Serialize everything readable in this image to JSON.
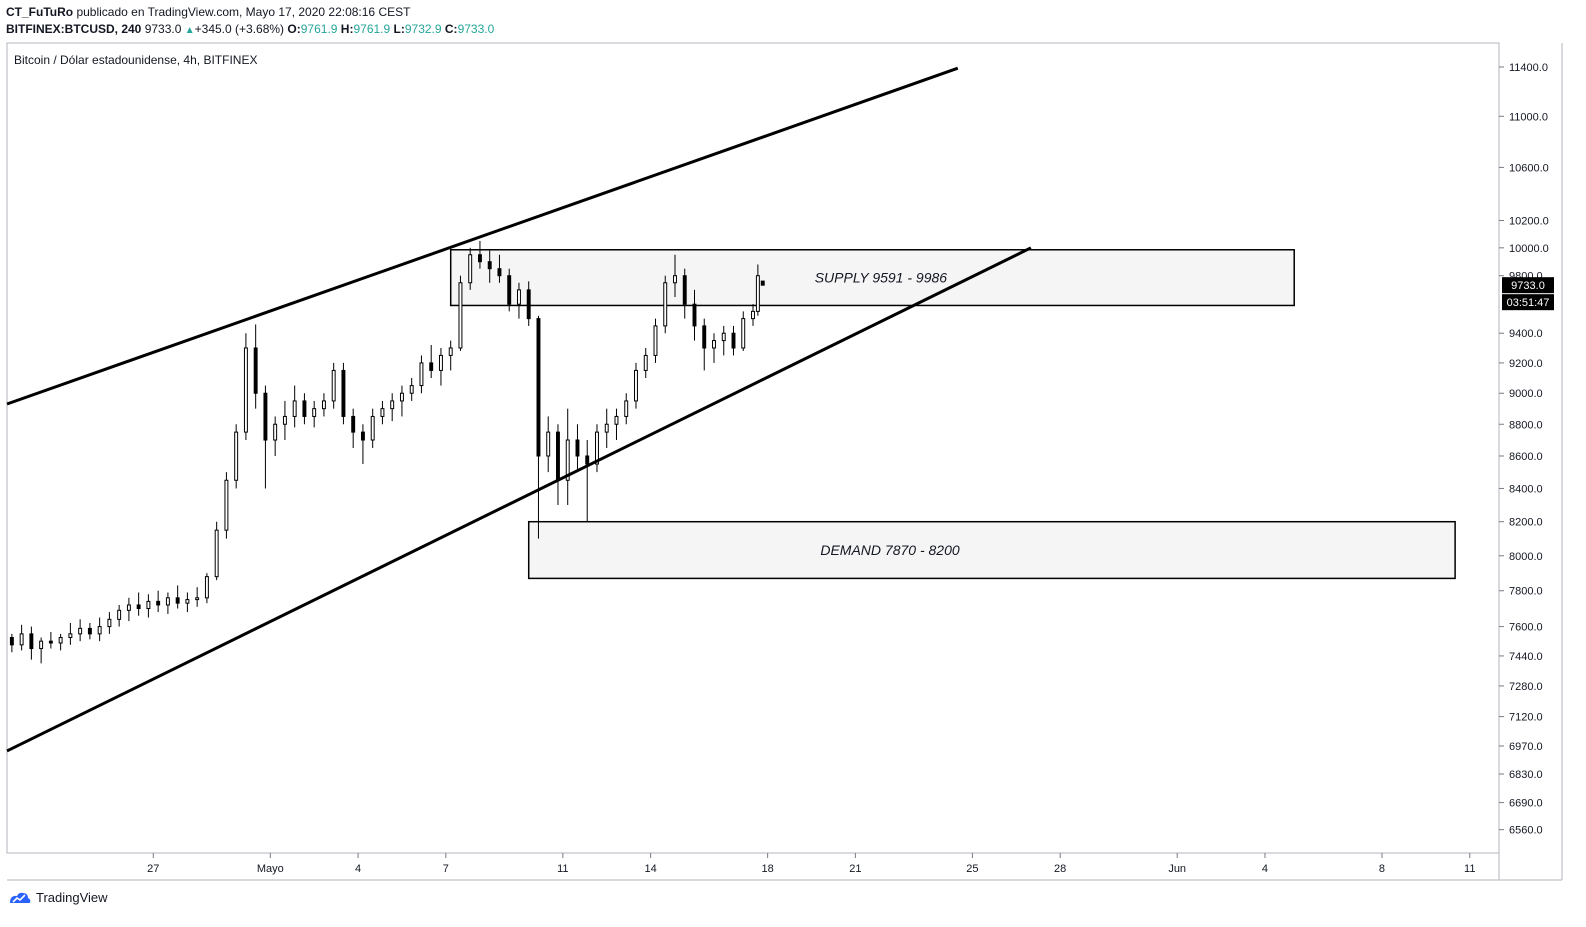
{
  "header": {
    "author": "CT_FuTuRo",
    "published_text": "publicado en TradingView.com, Mayo 17, 2020 22:08:16 CEST",
    "symbol": "BITFINEX:BTCUSD, 240",
    "last": "9733.0",
    "change": "+345.0 (+3.68%)",
    "change_arrow": "▲",
    "o_label": "O:",
    "o_value": "9761.9",
    "h_label": "H:",
    "h_value": "9761.9",
    "l_label": "L:",
    "l_value": "9732.9",
    "c_label": "C:",
    "c_value": "9733.0"
  },
  "footer": {
    "logo_text": "TradingView",
    "logo_icon": "tradingview-logo-icon"
  },
  "colors": {
    "up": "#26a69a",
    "accent_blue": "#2962ff",
    "line": "#000000",
    "zone_fill": "#f5f5f5"
  },
  "chart_data": {
    "type": "candlestick",
    "title": "Bitcoin / Dólar estadounidense, 4h, BITFINEX",
    "scale": "log",
    "ylim": [
      6450,
      11600
    ],
    "y_ticks": [
      "11400.0",
      "11000.0",
      "10600.0",
      "10200.0",
      "10000.0",
      "9800.0",
      "9400.0",
      "9200.0",
      "9000.0",
      "8800.0",
      "8600.0",
      "8400.0",
      "8200.0",
      "8000.0",
      "7800.0",
      "7600.0",
      "7440.0",
      "7280.0",
      "7120.0",
      "6970.0",
      "6830.0",
      "6690.0",
      "6560.0"
    ],
    "x_ticks": [
      "27",
      "Mayo",
      "4",
      "7",
      "11",
      "14",
      "18",
      "21",
      "25",
      "28",
      "Jun",
      "4",
      "8",
      "11"
    ],
    "x_range": [
      "2020-04-22",
      "2020-06-12"
    ],
    "price_label": "9733.0",
    "countdown_label": "03:51:47",
    "candles": [
      [
        "2020-04-22T04:00",
        7540,
        7560,
        7460,
        7500
      ],
      [
        "2020-04-22T12:00",
        7500,
        7610,
        7470,
        7560
      ],
      [
        "2020-04-22T20:00",
        7560,
        7600,
        7420,
        7480
      ],
      [
        "2020-04-23T04:00",
        7480,
        7540,
        7400,
        7520
      ],
      [
        "2020-04-23T12:00",
        7520,
        7570,
        7480,
        7510
      ],
      [
        "2020-04-23T20:00",
        7510,
        7560,
        7470,
        7540
      ],
      [
        "2020-04-24T04:00",
        7540,
        7620,
        7500,
        7560
      ],
      [
        "2020-04-24T12:00",
        7560,
        7640,
        7520,
        7590
      ],
      [
        "2020-04-24T20:00",
        7590,
        7620,
        7530,
        7560
      ],
      [
        "2020-04-25T04:00",
        7560,
        7650,
        7520,
        7600
      ],
      [
        "2020-04-25T12:00",
        7600,
        7680,
        7560,
        7640
      ],
      [
        "2020-04-25T20:00",
        7640,
        7720,
        7600,
        7690
      ],
      [
        "2020-04-26T04:00",
        7690,
        7760,
        7630,
        7720
      ],
      [
        "2020-04-26T12:00",
        7720,
        7790,
        7660,
        7700
      ],
      [
        "2020-04-26T20:00",
        7700,
        7780,
        7650,
        7740
      ],
      [
        "2020-04-27T04:00",
        7740,
        7800,
        7680,
        7720
      ],
      [
        "2020-04-27T12:00",
        7720,
        7790,
        7670,
        7760
      ],
      [
        "2020-04-27T20:00",
        7760,
        7830,
        7700,
        7730
      ],
      [
        "2020-04-28T04:00",
        7730,
        7790,
        7680,
        7750
      ],
      [
        "2020-04-28T12:00",
        7750,
        7820,
        7710,
        7760
      ],
      [
        "2020-04-28T20:00",
        7760,
        7900,
        7730,
        7880
      ],
      [
        "2020-04-29T04:00",
        7880,
        8200,
        7860,
        8150
      ],
      [
        "2020-04-29T12:00",
        8150,
        8500,
        8100,
        8450
      ],
      [
        "2020-04-29T20:00",
        8450,
        8800,
        8400,
        8750
      ],
      [
        "2020-04-30T04:00",
        8750,
        9400,
        8700,
        9300
      ],
      [
        "2020-04-30T12:00",
        9300,
        9460,
        8900,
        9000
      ],
      [
        "2020-04-30T20:00",
        9000,
        9050,
        8400,
        8700
      ],
      [
        "2020-05-01T04:00",
        8700,
        8850,
        8600,
        8800
      ],
      [
        "2020-05-01T12:00",
        8800,
        8950,
        8700,
        8850
      ],
      [
        "2020-05-01T20:00",
        8850,
        9050,
        8780,
        8950
      ],
      [
        "2020-05-02T04:00",
        8950,
        9000,
        8800,
        8850
      ],
      [
        "2020-05-02T12:00",
        8850,
        8950,
        8780,
        8900
      ],
      [
        "2020-05-02T20:00",
        8900,
        9000,
        8850,
        8950
      ],
      [
        "2020-05-03T04:00",
        8950,
        9200,
        8900,
        9150
      ],
      [
        "2020-05-03T12:00",
        9150,
        9200,
        8800,
        8850
      ],
      [
        "2020-05-03T20:00",
        8850,
        8900,
        8650,
        8750
      ],
      [
        "2020-05-04T04:00",
        8750,
        8800,
        8550,
        8700
      ],
      [
        "2020-05-04T12:00",
        8700,
        8900,
        8650,
        8850
      ],
      [
        "2020-05-04T20:00",
        8850,
        8950,
        8800,
        8900
      ],
      [
        "2020-05-05T04:00",
        8900,
        9000,
        8820,
        8950
      ],
      [
        "2020-05-05T12:00",
        8950,
        9050,
        8850,
        9000
      ],
      [
        "2020-05-05T20:00",
        9000,
        9100,
        8950,
        9050
      ],
      [
        "2020-05-06T04:00",
        9050,
        9250,
        9000,
        9200
      ],
      [
        "2020-05-06T12:00",
        9200,
        9320,
        9100,
        9150
      ],
      [
        "2020-05-06T20:00",
        9150,
        9300,
        9050,
        9250
      ],
      [
        "2020-05-07T04:00",
        9250,
        9350,
        9150,
        9300
      ],
      [
        "2020-05-07T12:00",
        9300,
        9800,
        9280,
        9750
      ],
      [
        "2020-05-07T20:00",
        9750,
        10000,
        9700,
        9950
      ],
      [
        "2020-05-08T04:00",
        9950,
        10050,
        9850,
        9900
      ],
      [
        "2020-05-08T12:00",
        9900,
        9980,
        9750,
        9850
      ],
      [
        "2020-05-08T20:00",
        9850,
        9950,
        9750,
        9800
      ],
      [
        "2020-05-09T04:00",
        9800,
        9850,
        9550,
        9600
      ],
      [
        "2020-05-09T12:00",
        9600,
        9750,
        9500,
        9700
      ],
      [
        "2020-05-09T20:00",
        9700,
        9760,
        9450,
        9500
      ],
      [
        "2020-05-10T04:00",
        9500,
        9520,
        8100,
        8600
      ],
      [
        "2020-05-10T12:00",
        8600,
        8850,
        8500,
        8750
      ],
      [
        "2020-05-10T20:00",
        8750,
        8800,
        8300,
        8450
      ],
      [
        "2020-05-11T04:00",
        8450,
        8900,
        8300,
        8700
      ],
      [
        "2020-05-11T12:00",
        8700,
        8800,
        8500,
        8600
      ],
      [
        "2020-05-11T20:00",
        8600,
        8700,
        8200,
        8550
      ],
      [
        "2020-05-12T04:00",
        8550,
        8800,
        8500,
        8750
      ],
      [
        "2020-05-12T12:00",
        8750,
        8900,
        8650,
        8800
      ],
      [
        "2020-05-12T20:00",
        8800,
        8900,
        8700,
        8850
      ],
      [
        "2020-05-13T04:00",
        8850,
        9000,
        8800,
        8950
      ],
      [
        "2020-05-13T12:00",
        8950,
        9200,
        8900,
        9150
      ],
      [
        "2020-05-13T20:00",
        9150,
        9300,
        9100,
        9250
      ],
      [
        "2020-05-14T04:00",
        9250,
        9500,
        9200,
        9450
      ],
      [
        "2020-05-14T12:00",
        9450,
        9800,
        9400,
        9750
      ],
      [
        "2020-05-14T20:00",
        9750,
        9950,
        9650,
        9800
      ],
      [
        "2020-05-15T04:00",
        9800,
        9850,
        9500,
        9600
      ],
      [
        "2020-05-15T12:00",
        9600,
        9700,
        9350,
        9450
      ],
      [
        "2020-05-15T20:00",
        9450,
        9500,
        9150,
        9300
      ],
      [
        "2020-05-16T04:00",
        9300,
        9400,
        9200,
        9350
      ],
      [
        "2020-05-16T12:00",
        9350,
        9450,
        9250,
        9400
      ],
      [
        "2020-05-16T20:00",
        9400,
        9450,
        9250,
        9300
      ],
      [
        "2020-05-17T04:00",
        9300,
        9550,
        9280,
        9500
      ],
      [
        "2020-05-17T12:00",
        9500,
        9600,
        9450,
        9550
      ],
      [
        "2020-05-17T16:00",
        9550,
        9880,
        9520,
        9800
      ],
      [
        "2020-05-17T20:00",
        9761.9,
        9761.9,
        9732.9,
        9733.0
      ]
    ],
    "lines": [
      {
        "name": "upper-channel",
        "x1": "2020-04-22T00:00",
        "y1": 8930,
        "x2": "2020-05-24T12:00",
        "y2": 11390
      },
      {
        "name": "lower-channel",
        "x1": "2020-04-22T00:00",
        "y1": 6945,
        "x2": "2020-05-27T00:00",
        "y2": 10000
      }
    ],
    "zones": [
      {
        "label": "SUPPLY 9591 - 9986",
        "low": 9591,
        "high": 9986,
        "from": "2020-05-07T04:00",
        "to": "2020-06-05T00:00"
      },
      {
        "label": "DEMAND 7870 - 8200",
        "low": 7870,
        "high": 8200,
        "from": "2020-05-09T20:00",
        "to": "2020-06-10T12:00"
      }
    ]
  }
}
